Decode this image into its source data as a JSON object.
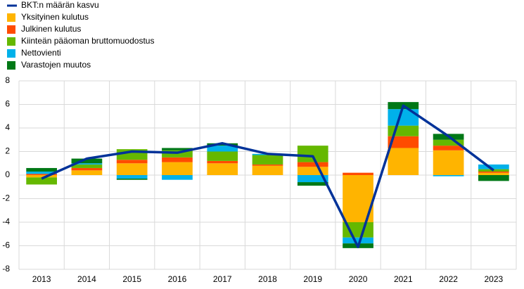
{
  "chart_data": {
    "type": "bar",
    "categories": [
      "2013",
      "2014",
      "2015",
      "2016",
      "2017",
      "2018",
      "2019",
      "2020",
      "2021",
      "2022",
      "2023"
    ],
    "series": [
      {
        "name": "BKT:n määrän kasvu",
        "type": "line",
        "color": "#003299",
        "values": [
          -0.3,
          1.4,
          2.0,
          1.9,
          2.7,
          1.8,
          1.6,
          -6.1,
          5.9,
          3.3,
          0.4
        ]
      },
      {
        "name": "Yksityinen kulutus",
        "type": "bar",
        "color": "#ffb400",
        "values": [
          -0.2,
          0.4,
          1.0,
          1.1,
          1.0,
          0.8,
          0.7,
          -4.0,
          2.3,
          2.1,
          0.2
        ]
      },
      {
        "name": "Julkinen kulutus",
        "type": "bar",
        "color": "#ff4b00",
        "values": [
          0.1,
          0.2,
          0.3,
          0.4,
          0.2,
          0.1,
          0.4,
          0.2,
          1.0,
          0.4,
          0.1
        ]
      },
      {
        "name": "Kiinteän pääoman bruttomuodostus",
        "type": "bar",
        "color": "#65b800",
        "values": [
          -0.6,
          0.3,
          0.9,
          0.6,
          0.8,
          0.8,
          1.4,
          -1.3,
          0.9,
          0.5,
          0.2
        ]
      },
      {
        "name": "Nettovienti",
        "type": "bar",
        "color": "#00b1ea",
        "values": [
          0.2,
          0.1,
          -0.3,
          -0.4,
          0.5,
          0.1,
          -0.6,
          -0.5,
          1.4,
          -0.1,
          0.4
        ]
      },
      {
        "name": "Varastojen muutos",
        "type": "bar",
        "color": "#007816",
        "values": [
          0.3,
          0.4,
          -0.1,
          0.2,
          0.2,
          0.0,
          -0.3,
          -0.4,
          0.6,
          0.5,
          -0.5
        ]
      }
    ],
    "ylim": [
      -8,
      8
    ],
    "yticks": [
      -8,
      -6,
      -4,
      -2,
      0,
      2,
      4,
      6,
      8
    ],
    "grid": true
  }
}
